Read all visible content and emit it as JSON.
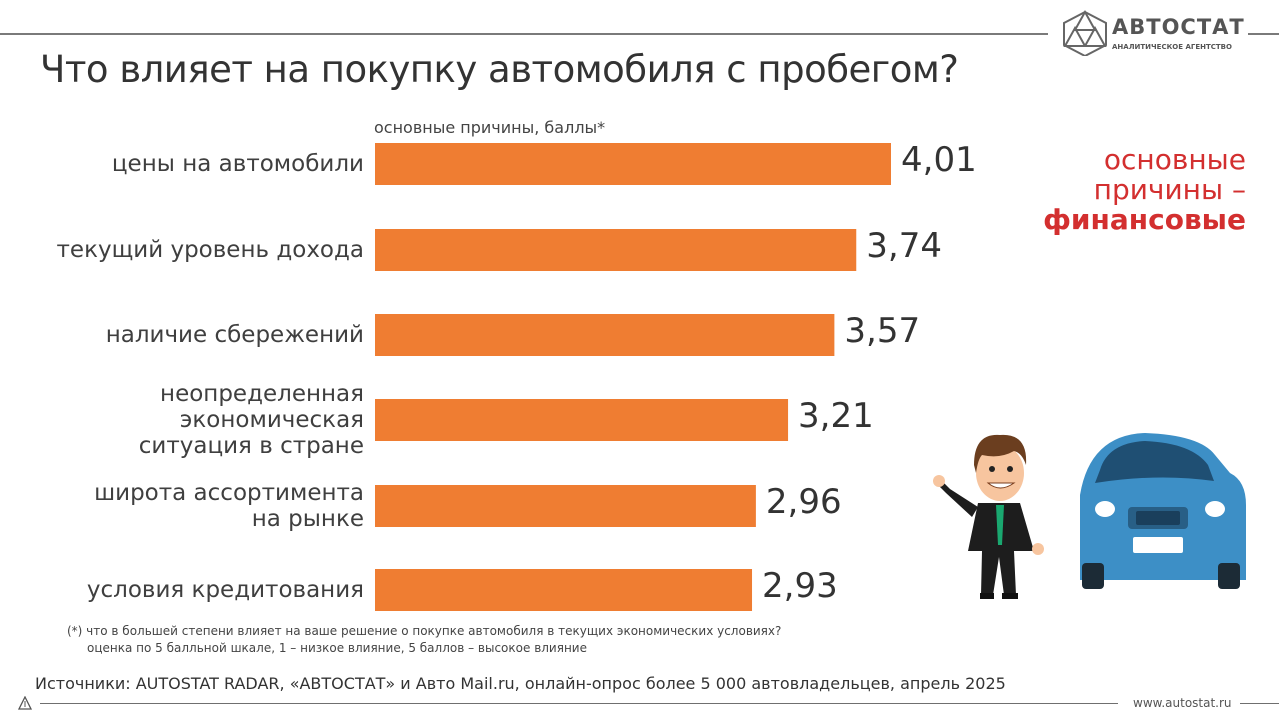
{
  "brand": {
    "name": "АВТОСТАТ",
    "subtitle": "АНАЛИТИЧЕСКОЕ АГЕНТСТВО",
    "website": "www.autostat.ru",
    "rule_color": "#7a7a7a"
  },
  "title": "Что влияет на покупку автомобиля с пробегом?",
  "note": {
    "line1": "основные",
    "line2": "причины –",
    "line3": "финансовые",
    "color": "#d32f2f"
  },
  "footnote": {
    "line1": "(*) что в большей степени влияет на ваше решение о покупке автомобиля в текущих экономических условиях?",
    "line2": "оценка по 5 балльной шкале, 1 – низкое влияние, 5 баллов – высокое влияние"
  },
  "source": "Источники: AUTOSTAT RADAR, «АВТОСТАТ» и Авто Mail.ru, онлайн-опрос более 5 000 автовладельцев, апрель 2025",
  "illustration": {
    "description_icons": [
      "businessman-icon",
      "car-icon"
    ],
    "car_color": "#3d8fc6",
    "suit_color": "#1d1d1d",
    "tie_color": "#1aa870"
  },
  "chart_data": {
    "type": "bar",
    "orientation": "horizontal",
    "title": "основные причины, баллы*",
    "categories": [
      "цены на автомобили",
      "текущий уровень дохода",
      "наличие сбережений",
      "неопределенная\nэкономическая\nситуация в стране",
      "широта ассортимента\nна рынке",
      "условия кредитования"
    ],
    "values": [
      4.01,
      3.74,
      3.57,
      3.21,
      2.96,
      2.93
    ],
    "value_labels": [
      "4,01",
      "3,74",
      "3,57",
      "3,21",
      "2,96",
      "2,93"
    ],
    "bar_color": "#ef7d32",
    "xlim": [
      0,
      4.01
    ],
    "grid": false,
    "legend": "none"
  }
}
